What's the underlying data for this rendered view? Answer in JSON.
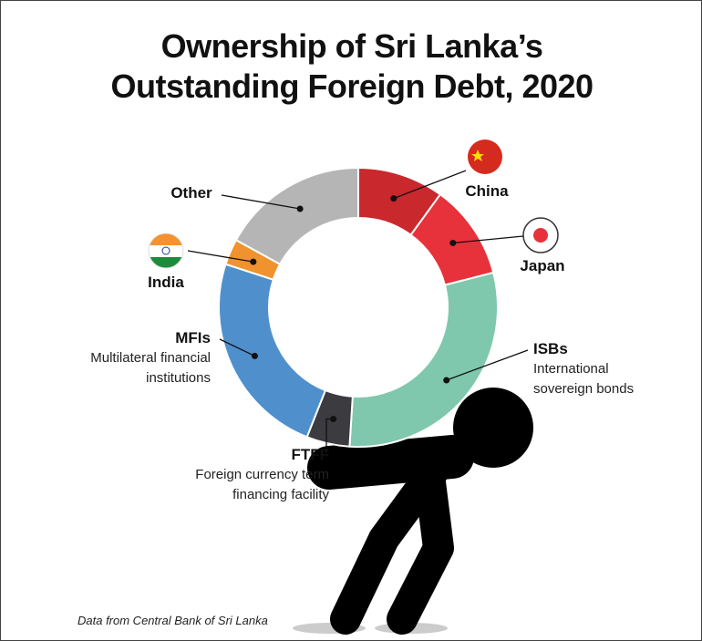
{
  "chart_data": {
    "type": "donut",
    "title": "Ownership of Sri Lanka’s Outstanding Foreign Debt, 2020",
    "categories": [
      "China",
      "Japan",
      "ISBs",
      "FTFF",
      "MFIs",
      "India",
      "Other"
    ],
    "descriptions": [
      null,
      null,
      "International sovereign bonds",
      "Foreign currency term financing facility",
      "Multilateral financial institutions",
      null,
      null
    ],
    "values": [
      10,
      11,
      30,
      5,
      24,
      3,
      17
    ],
    "colors": [
      "#c9282d",
      "#e8323b",
      "#7fc8ad",
      "#3b3b40",
      "#4f90cc",
      "#f0922e",
      "#b5b5b5"
    ],
    "source": "Data from Central Bank of Sri Lanka"
  }
}
